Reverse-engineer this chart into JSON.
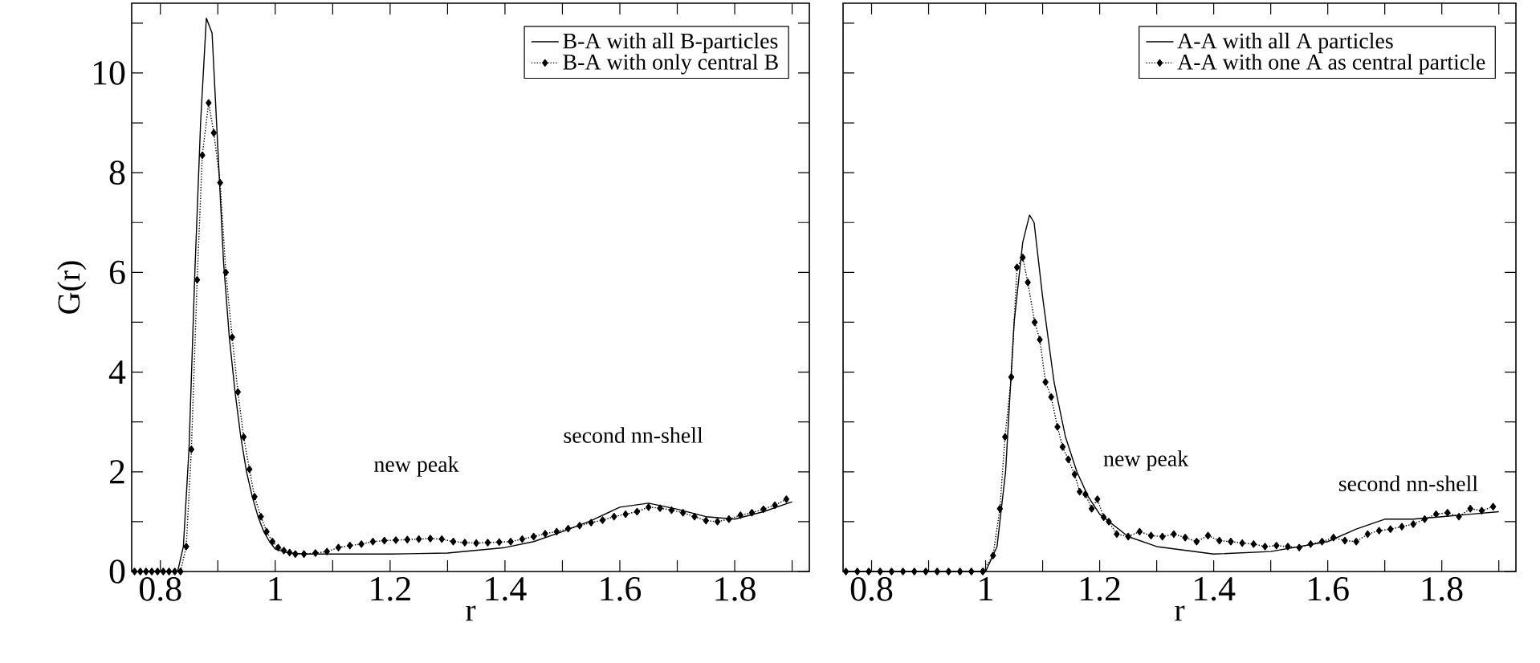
{
  "chart_data": [
    {
      "type": "line",
      "xlabel": "r",
      "ylabel": "G(r)",
      "xlim": [
        0.75,
        1.93
      ],
      "ylim": [
        0,
        11.4
      ],
      "xticks": [
        0.8,
        {
          "value": 0.9,
          "label": null
        },
        1,
        {
          "value": 1.1,
          "label": null
        },
        1.2,
        {
          "value": 1.3,
          "label": null
        },
        1.4,
        {
          "value": 1.5,
          "label": null
        },
        1.6,
        {
          "value": 1.7,
          "label": null
        },
        1.8,
        {
          "value": 1.9,
          "label": null
        }
      ],
      "yticks": [
        0,
        {
          "value": 1,
          "label": null
        },
        2,
        {
          "value": 3,
          "label": null
        },
        4,
        {
          "value": 5,
          "label": null
        },
        6,
        {
          "value": 7,
          "label": null
        },
        8,
        {
          "value": 9,
          "label": null
        },
        10,
        {
          "value": 11,
          "label": null
        }
      ],
      "legend": "top right",
      "annotations": [
        "new peak",
        "second nn-shell"
      ],
      "series": [
        {
          "name": "B-A with all B-particles",
          "color": "#000000",
          "marker": "none",
          "line_style": "solid",
          "x": [
            0.75,
            0.83,
            0.84,
            0.85,
            0.86,
            0.87,
            0.88,
            0.89,
            0.9,
            0.91,
            0.92,
            0.93,
            0.94,
            0.95,
            0.96,
            0.97,
            0.98,
            0.99,
            1.0,
            1.02,
            1.05,
            1.1,
            1.2,
            1.3,
            1.4,
            1.45,
            1.5,
            1.55,
            1.6,
            1.65,
            1.7,
            1.75,
            1.8,
            1.85,
            1.9
          ],
          "values": [
            0,
            0,
            0.5,
            2.5,
            6,
            9,
            11.1,
            10.8,
            8.5,
            6.2,
            4.7,
            3.6,
            2.7,
            2.0,
            1.5,
            1.1,
            0.8,
            0.6,
            0.45,
            0.38,
            0.35,
            0.35,
            0.35,
            0.37,
            0.48,
            0.6,
            0.8,
            1.02,
            1.29,
            1.37,
            1.25,
            1.1,
            1.05,
            1.2,
            1.4
          ]
        },
        {
          "name": "B-A with only central B",
          "color": "#000000",
          "marker": "diamond",
          "line_style": "dotted",
          "x": [
            0.755,
            0.765,
            0.775,
            0.785,
            0.795,
            0.805,
            0.815,
            0.825,
            0.835,
            0.845,
            0.854,
            0.864,
            0.873,
            0.884,
            0.893,
            0.904,
            0.914,
            0.925,
            0.935,
            0.945,
            0.955,
            0.964,
            0.975,
            0.985,
            0.995,
            1.005,
            1.015,
            1.025,
            1.035,
            1.05,
            1.07,
            1.09,
            1.11,
            1.13,
            1.15,
            1.17,
            1.19,
            1.21,
            1.23,
            1.25,
            1.27,
            1.29,
            1.31,
            1.33,
            1.35,
            1.37,
            1.39,
            1.41,
            1.43,
            1.45,
            1.47,
            1.49,
            1.51,
            1.53,
            1.55,
            1.57,
            1.59,
            1.61,
            1.63,
            1.65,
            1.67,
            1.69,
            1.71,
            1.73,
            1.75,
            1.77,
            1.79,
            1.81,
            1.83,
            1.85,
            1.87,
            1.89
          ],
          "values": [
            0,
            0,
            0,
            0,
            0,
            0,
            0,
            0,
            0,
            0.5,
            2.45,
            5.85,
            8.35,
            9.4,
            8.8,
            7.8,
            6.0,
            4.7,
            3.6,
            2.7,
            2.05,
            1.5,
            1.1,
            0.8,
            0.6,
            0.48,
            0.42,
            0.38,
            0.35,
            0.35,
            0.37,
            0.4,
            0.48,
            0.52,
            0.55,
            0.6,
            0.62,
            0.63,
            0.64,
            0.65,
            0.66,
            0.65,
            0.6,
            0.58,
            0.57,
            0.58,
            0.59,
            0.6,
            0.65,
            0.7,
            0.76,
            0.8,
            0.86,
            0.92,
            0.98,
            1.03,
            1.1,
            1.15,
            1.2,
            1.29,
            1.27,
            1.23,
            1.18,
            1.1,
            1.02,
            1.0,
            1.05,
            1.13,
            1.18,
            1.25,
            1.33,
            1.45
          ]
        }
      ]
    },
    {
      "type": "line",
      "xlabel": "r",
      "xlim": [
        0.75,
        1.93
      ],
      "ylim": [
        0,
        11.4
      ],
      "tick_labels": "x",
      "xticks": [
        0.8,
        {
          "value": 0.9,
          "label": null
        },
        1,
        {
          "value": 1.1,
          "label": null
        },
        1.2,
        {
          "value": 1.3,
          "label": null
        },
        1.4,
        {
          "value": 1.5,
          "label": null
        },
        1.6,
        {
          "value": 1.7,
          "label": null
        },
        1.8,
        {
          "value": 1.9,
          "label": null
        }
      ],
      "yticks": [
        0,
        {
          "value": 1,
          "label": null
        },
        2,
        {
          "value": 3,
          "label": null
        },
        4,
        {
          "value": 5,
          "label": null
        },
        6,
        {
          "value": 7,
          "label": null
        },
        8,
        {
          "value": 9,
          "label": null
        },
        10,
        {
          "value": 11,
          "label": null
        }
      ],
      "legend": "top right",
      "annotations": [
        "new peak",
        "second nn-shell"
      ],
      "series": [
        {
          "name": "A-A with all A particles",
          "color": "#000000",
          "marker": "none",
          "line_style": "solid",
          "x": [
            0.75,
            1.0,
            1.02,
            1.035,
            1.05,
            1.065,
            1.077,
            1.085,
            1.1,
            1.12,
            1.14,
            1.16,
            1.18,
            1.2,
            1.25,
            1.3,
            1.4,
            1.5,
            1.6,
            1.65,
            1.7,
            1.75,
            1.8,
            1.85,
            1.9
          ],
          "values": [
            0,
            0,
            0.5,
            2,
            5,
            6.6,
            7.15,
            7.0,
            5.5,
            3.8,
            2.7,
            2.0,
            1.5,
            1.15,
            0.7,
            0.5,
            0.35,
            0.4,
            0.6,
            0.85,
            1.05,
            1.05,
            1.1,
            1.15,
            1.2
          ]
        },
        {
          "name": "A-A with one A as central particle",
          "color": "#000000",
          "marker": "diamond",
          "line_style": "dotted",
          "x": [
            0.755,
            0.775,
            0.795,
            0.815,
            0.835,
            0.855,
            0.875,
            0.895,
            0.915,
            0.935,
            0.955,
            0.975,
            0.995,
            1.013,
            1.025,
            1.034,
            1.045,
            1.055,
            1.065,
            1.074,
            1.086,
            1.095,
            1.105,
            1.115,
            1.126,
            1.135,
            1.145,
            1.156,
            1.165,
            1.175,
            1.186,
            1.196,
            1.207,
            1.216,
            1.23,
            1.25,
            1.27,
            1.29,
            1.31,
            1.33,
            1.35,
            1.37,
            1.39,
            1.41,
            1.43,
            1.45,
            1.47,
            1.49,
            1.51,
            1.53,
            1.55,
            1.57,
            1.59,
            1.61,
            1.63,
            1.65,
            1.67,
            1.69,
            1.71,
            1.73,
            1.75,
            1.77,
            1.79,
            1.81,
            1.83,
            1.85,
            1.87,
            1.89
          ],
          "values": [
            0,
            0,
            0,
            0,
            0,
            0,
            0,
            0,
            0,
            0,
            0,
            0,
            0,
            0.32,
            1.26,
            2.7,
            3.9,
            6.1,
            6.3,
            5.8,
            5.0,
            4.65,
            3.8,
            3.5,
            2.9,
            2.5,
            2.25,
            1.95,
            1.6,
            1.55,
            1.26,
            1.45,
            1.09,
            1.0,
            0.75,
            0.7,
            0.8,
            0.72,
            0.7,
            0.75,
            0.68,
            0.6,
            0.72,
            0.62,
            0.6,
            0.57,
            0.55,
            0.5,
            0.52,
            0.5,
            0.48,
            0.55,
            0.6,
            0.68,
            0.62,
            0.6,
            0.75,
            0.82,
            0.85,
            0.9,
            0.95,
            1.05,
            1.15,
            1.18,
            1.1,
            1.26,
            1.22,
            1.3
          ]
        }
      ]
    }
  ]
}
